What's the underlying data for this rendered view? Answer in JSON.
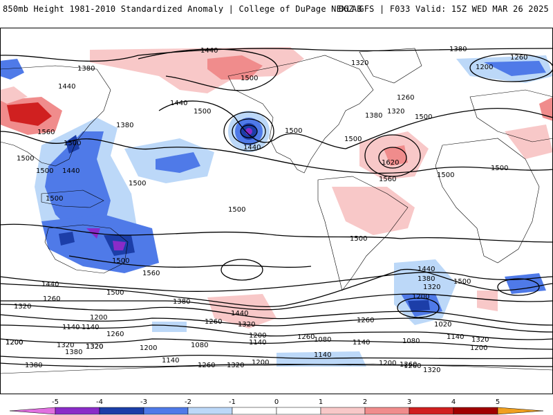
{
  "header": {
    "left": "850mb Height 1981-2010 Standardized Anomaly | College of DuPage NEXLAB",
    "right": "06Z GFS | F033 Valid: 15Z WED MAR 26 2025"
  },
  "colors": {
    "neg5": "#e070e0",
    "neg4": "#8a2bc8",
    "neg3": "#1c3ea8",
    "neg2": "#4f7ae8",
    "neg1": "#bcd8f8",
    "pos1": "#f8c8c8",
    "pos2": "#f08c8c",
    "pos3": "#d02020",
    "pos4": "#a00000",
    "pos5": "#f0a020",
    "contour": "#000000",
    "land": "#000000"
  },
  "colorbar": {
    "ticks": [
      "-5",
      "-4",
      "-3",
      "-2",
      "-1",
      "0",
      "1",
      "2",
      "3",
      "4",
      "5"
    ]
  },
  "contour_labels": [
    {
      "text": "1440"
    },
    {
      "text": "1380"
    },
    {
      "text": "1260"
    },
    {
      "text": "1200"
    },
    {
      "text": "1380"
    },
    {
      "text": "1440"
    },
    {
      "text": "1320"
    },
    {
      "text": "1500"
    },
    {
      "text": "1440"
    },
    {
      "text": "1500"
    },
    {
      "text": "1500"
    },
    {
      "text": "1380"
    },
    {
      "text": "1260"
    },
    {
      "text": "1320"
    },
    {
      "text": "1380"
    },
    {
      "text": "1500"
    },
    {
      "text": "1440"
    },
    {
      "text": "1500"
    },
    {
      "text": "1560"
    },
    {
      "text": "1500"
    },
    {
      "text": "1500"
    },
    {
      "text": "1440"
    },
    {
      "text": "1500"
    },
    {
      "text": "1620"
    },
    {
      "text": "1560"
    },
    {
      "text": "1500"
    },
    {
      "text": "1500"
    },
    {
      "text": "1500"
    },
    {
      "text": "1500"
    },
    {
      "text": "1500"
    },
    {
      "text": "1500"
    },
    {
      "text": "1560"
    },
    {
      "text": "1500"
    },
    {
      "text": "1440"
    },
    {
      "text": "1380"
    },
    {
      "text": "1320"
    },
    {
      "text": "1500"
    },
    {
      "text": "1440"
    },
    {
      "text": "1500"
    },
    {
      "text": "1380"
    },
    {
      "text": "1320"
    },
    {
      "text": "1260"
    },
    {
      "text": "1200"
    },
    {
      "text": "1140"
    },
    {
      "text": "1140"
    },
    {
      "text": "1260"
    },
    {
      "text": "1320"
    },
    {
      "text": "1200"
    },
    {
      "text": "1440"
    },
    {
      "text": "1260"
    },
    {
      "text": "1320"
    },
    {
      "text": "1260"
    },
    {
      "text": "1200"
    },
    {
      "text": "1140"
    },
    {
      "text": "1080"
    },
    {
      "text": "1140"
    },
    {
      "text": "1200"
    },
    {
      "text": "1020"
    },
    {
      "text": "1080"
    },
    {
      "text": "1140"
    },
    {
      "text": "1200"
    },
    {
      "text": "1260"
    },
    {
      "text": "1320"
    },
    {
      "text": "1380"
    },
    {
      "text": "1200"
    },
    {
      "text": "1320"
    },
    {
      "text": "1140"
    },
    {
      "text": "1080"
    },
    {
      "text": "1140"
    },
    {
      "text": "1260"
    },
    {
      "text": "1320"
    },
    {
      "text": "1200"
    },
    {
      "text": "1320"
    },
    {
      "text": "1200"
    },
    {
      "text": "1260"
    },
    {
      "text": "1320"
    },
    {
      "text": "1380"
    },
    {
      "text": "1200"
    },
    {
      "text": "1260"
    }
  ]
}
